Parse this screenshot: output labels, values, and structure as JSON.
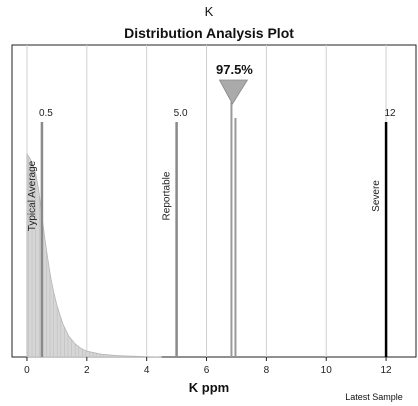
{
  "element": "K",
  "chart_data": {
    "type": "area",
    "title": "Distribution Analysis Plot",
    "xlabel": "K ppm",
    "xlim": [
      -0.5,
      13
    ],
    "x_ticks": [
      0,
      2,
      4,
      6,
      8,
      10,
      12
    ],
    "grid": true,
    "distribution": {
      "x": [
        0.0,
        0.1,
        0.2,
        0.3,
        0.4,
        0.5,
        0.6,
        0.7,
        0.8,
        0.9,
        1.0,
        1.2,
        1.4,
        1.6,
        1.8,
        2.0,
        2.5,
        3.0,
        3.5,
        4.0,
        4.5
      ],
      "y": [
        0.98,
        0.96,
        0.93,
        0.88,
        0.8,
        0.68,
        0.57,
        0.47,
        0.38,
        0.31,
        0.25,
        0.16,
        0.1,
        0.065,
        0.042,
        0.028,
        0.013,
        0.007,
        0.004,
        0.002,
        0.0
      ]
    },
    "markers": [
      {
        "value_label": "0.5",
        "x": 0.5,
        "name": "Typical Average",
        "color": "#8a8a8a"
      },
      {
        "value_label": "5.0",
        "x": 5.0,
        "name": "Reportable",
        "color": "#8a8a8a"
      },
      {
        "value_label": "12",
        "x": 12.0,
        "name": "Severe",
        "color": "#000000"
      }
    ],
    "percentile": {
      "label": "97.5%",
      "x": 6.9,
      "color": "#999999"
    },
    "latest_sample_label": "Latest Sample"
  }
}
